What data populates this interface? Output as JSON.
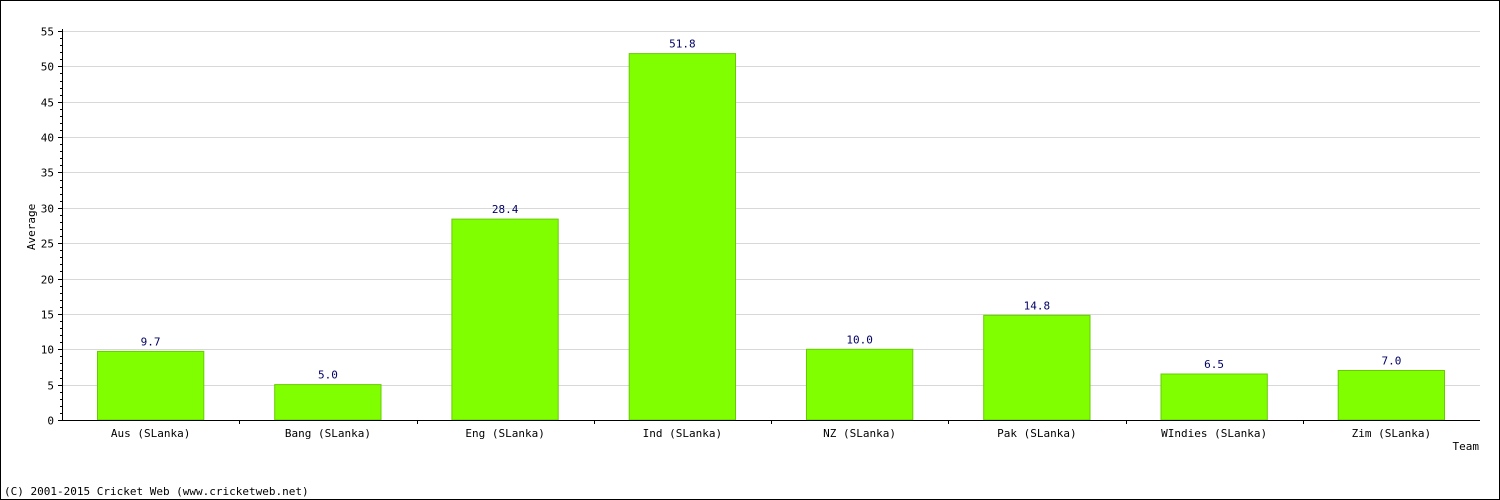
{
  "chart_data": {
    "type": "bar",
    "categories": [
      "Aus (SLanka)",
      "Bang (SLanka)",
      "Eng (SLanka)",
      "Ind (SLanka)",
      "NZ (SLanka)",
      "Pak (SLanka)",
      "WIndies (SLanka)",
      "Zim (SLanka)"
    ],
    "values": [
      9.7,
      5.0,
      28.4,
      51.8,
      10.0,
      14.8,
      6.5,
      7.0
    ],
    "value_labels": [
      "9.7",
      "5.0",
      "28.4",
      "51.8",
      "10.0",
      "14.8",
      "6.5",
      "7.0"
    ],
    "xlabel": "Team",
    "ylabel": "Average",
    "ylim": [
      0,
      55
    ],
    "yticks": [
      0,
      5,
      10,
      15,
      20,
      25,
      30,
      35,
      40,
      45,
      50,
      55
    ],
    "grid": true,
    "bar_color": "#80ff00",
    "value_label_color": "#000066"
  },
  "footer": {
    "copyright": "(C) 2001-2015 Cricket Web (www.cricketweb.net)"
  }
}
